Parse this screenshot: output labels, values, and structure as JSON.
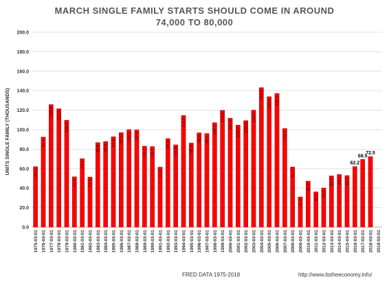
{
  "header": {
    "title_line1": "MARCH SINGLE FAMILY STARTS SHOULD COME IN AROUND",
    "title_line2": "74,000 TO 80,000"
  },
  "footer": {
    "source": "FRED  DATA 1975-2018",
    "url": "http://www.itstheeconomy.info/"
  },
  "colors": {
    "bar": "#ff0000",
    "bar_edge": "#8b0000",
    "grid": "#d9d9d9",
    "text": "#333333"
  },
  "chart_data": {
    "type": "bar",
    "ylabel": "UNITS SINGLE FAMILY (THOUSANDS)",
    "xlabel": "FRED  DATA 1975-2018",
    "ylim": [
      0,
      200
    ],
    "yticks": [
      "0.0",
      "20.0",
      "40.0",
      "60.0",
      "80.0",
      "100.0",
      "120.0",
      "140.0",
      "160.0",
      "180.0",
      "200.0"
    ],
    "grid": true,
    "categories": [
      "1975-03-01",
      "1976-03-01",
      "1977-03-01",
      "1978-03-01",
      "1979-03-01",
      "1980-03-01",
      "1981-03-01",
      "1982-03-01",
      "1983-03-01",
      "1984-03-01",
      "1985-03-01",
      "1986-03-01",
      "1987-03-01",
      "1988-03-01",
      "1989-03-01",
      "1990-03-01",
      "1991-03-01",
      "1992-03-01",
      "1993-03-01",
      "1994-03-01",
      "1995-03-01",
      "1996-03-01",
      "1997-03-01",
      "1998-03-01",
      "1999-03-01",
      "2000-03-01",
      "2001-03-01",
      "2002-03-01",
      "2003-03-01",
      "2004-03-01",
      "2005-03-01",
      "2006-03-01",
      "2007-03-01",
      "2008-03-01",
      "2009-03-01",
      "2010-03-01",
      "2011-03-01",
      "2012-03-01",
      "2013-03-01",
      "2014-03-01",
      "2015-03-01",
      "2016-03-01",
      "2017-03-01",
      "2018-03-01",
      "2019-03-01"
    ],
    "values": [
      62.1,
      92.4,
      125.8,
      121.5,
      109.8,
      51.7,
      70.3,
      51.4,
      86.8,
      87.9,
      92.8,
      97.0,
      100.1,
      99.9,
      83.1,
      82.7,
      61.6,
      90.9,
      84.5,
      114.6,
      86.3,
      96.8,
      96.1,
      107.2,
      119.9,
      111.9,
      104.7,
      109.3,
      120.1,
      143.2,
      133.9,
      137.1,
      101.2,
      61.7,
      31.0,
      47.2,
      36.2,
      40.2,
      52.6,
      54.1,
      52.9,
      62.2,
      69.5,
      72.5,
      null
    ],
    "outside_labels": {
      "41": "62.2",
      "42": "69.5",
      "43": "72.5"
    }
  }
}
